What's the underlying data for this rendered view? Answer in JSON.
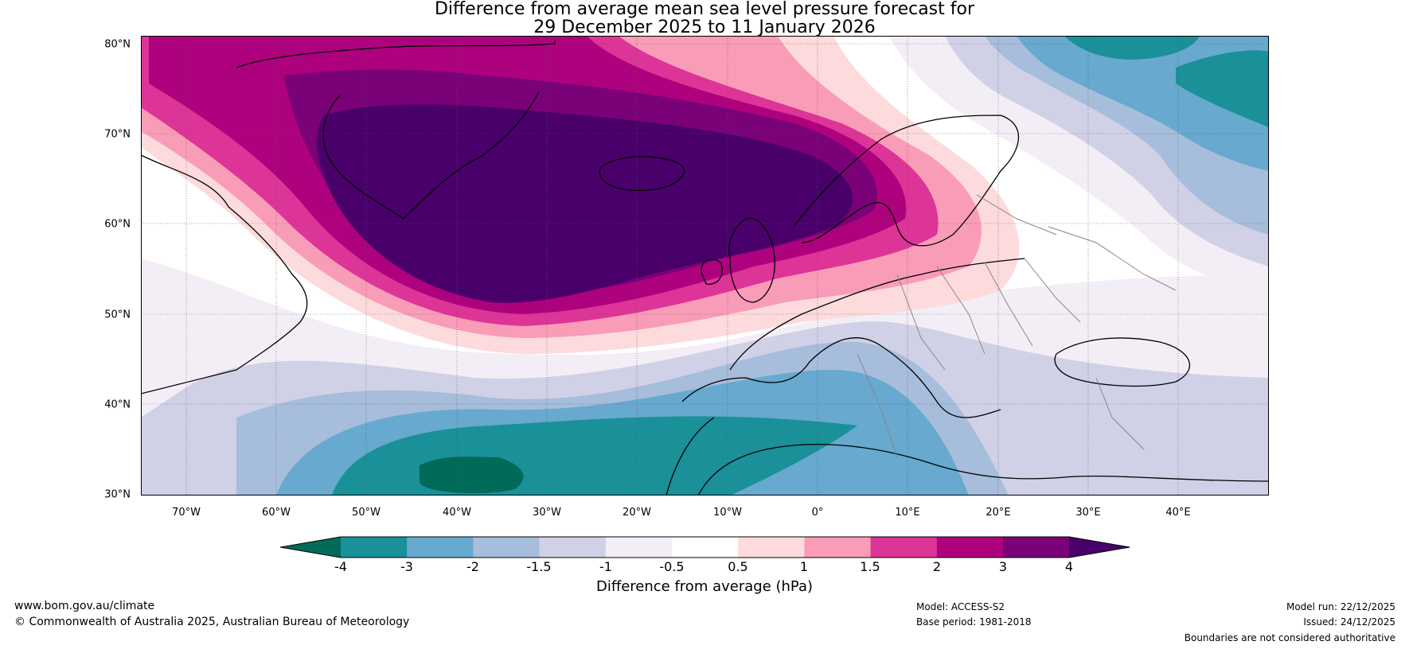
{
  "title": {
    "line1": "Difference from average mean sea level pressure forecast for",
    "line2": "29 December 2025 to 11 January 2026"
  },
  "map": {
    "lat_labels": [
      "80°N",
      "70°N",
      "60°N",
      "50°N",
      "40°N",
      "30°N"
    ],
    "lon_labels": [
      "70°W",
      "60°W",
      "50°W",
      "40°W",
      "30°W",
      "20°W",
      "10°W",
      "0°",
      "10°E",
      "20°E",
      "30°E",
      "40°E"
    ]
  },
  "colorbar": {
    "ticks": [
      "-4",
      "-3",
      "-2",
      "-1.5",
      "-1",
      "-0.5",
      "0.5",
      "1",
      "1.5",
      "2",
      "3",
      "4"
    ],
    "colors": [
      "#006b58",
      "#1a9099",
      "#67a9cf",
      "#a6bddb",
      "#d0d1e6",
      "#f3eef6",
      "#ffffff",
      "#fddbdc",
      "#f99cb8",
      "#dd3497",
      "#ae017e",
      "#7a0177",
      "#49006a"
    ],
    "label": "Difference from average (hPa)"
  },
  "footer": {
    "website": "www.bom.gov.au/climate",
    "copyright": "© Commonwealth of Australia 2025, Australian Bureau of Meteorology",
    "model": "Model: ACCESS-S2",
    "base_period": "Base period: 1981-2018",
    "model_run": "Model run: 22/12/2025",
    "issued": "Issued: 24/12/2025",
    "disclaimer": "Boundaries are not considered authoritative"
  }
}
